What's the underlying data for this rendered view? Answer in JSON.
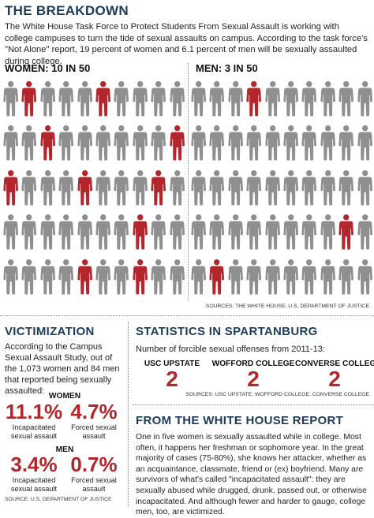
{
  "breakdown": {
    "title": "THE BREAKDOWN",
    "intro": "The White House Task Force to Protect Students From Sexual Assault is working with college campuses to turn the tide of sexual assaults on campus. According to the task force's \"Not Alone\" report, 19 percent of women and 6.1 percent of men will be sexually assaulted during college.",
    "women_label": "WOMEN: 10 IN 50",
    "men_label": "MEN: 3 IN 50",
    "source": "SOURCES: THE WHITE HOUSE, U.S. DEPARTMENT OF JUSTICE",
    "colors": {
      "highlight": "#b3262b",
      "default": "#8f8f8f"
    },
    "women_highlight": [
      1,
      5,
      12,
      19,
      20,
      24,
      28,
      37,
      44,
      47
    ],
    "men_highlight": [
      3,
      38,
      41
    ]
  },
  "victimization": {
    "title": "VICTIMIZATION",
    "intro": "According to the Campus Sexual Assault Study, out of the 1,073 women and 84 men that reported being sexually assaulted:",
    "women_label": "WOMEN",
    "women_stats": [
      {
        "value": "11.1%",
        "label": "Incapacitated sexual assault"
      },
      {
        "value": "4.7%",
        "label": "Forced sexual assault"
      }
    ],
    "men_label": "MEN",
    "men_stats": [
      {
        "value": "3.4%",
        "label": "Incapacitated sexual assault"
      },
      {
        "value": "0.7%",
        "label": "Forced sexual assault"
      }
    ],
    "source": "SOURCE: U.S. DEPARTMENT OF JUSTICE"
  },
  "spartanburg": {
    "title": "STATISTICS IN SPARTANBURG",
    "subtitle": "Number of forcible sexual offenses from 2011-13:",
    "schools": [
      {
        "name": "USC UPSTATE",
        "value": "2"
      },
      {
        "name": "WOFFORD COLLEGE",
        "value": "2"
      },
      {
        "name": "CONVERSE COLLEGE",
        "value": "2"
      }
    ],
    "source": "SOURCES: USC UPSTATE, WOFFORD COLLEGE, CONVERSE COLLEGE"
  },
  "report": {
    "title": "FROM THE WHITE HOUSE REPORT",
    "text": "One in five women is sexually assaulted while in college. Most often, it happens her freshman or sophomore year. In the great majority of cases (75-80%), she knows her attacker, whether as an acquaintance, classmate, friend or (ex) boyfriend. Many are survivors of what's called \"incapacitated assault\": they are sexually abused while drugged, drunk, passed out, or otherwise incapacitated. And although fewer and harder to gauge, college men, too, are victimized."
  }
}
